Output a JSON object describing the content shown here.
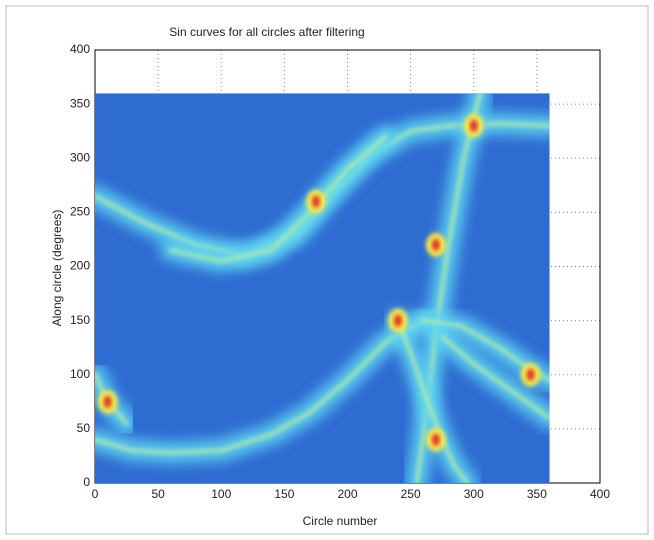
{
  "chart_data": {
    "type": "heatmap",
    "title": "Sin curves for all circles after filtering",
    "xlabel": "Circle number",
    "ylabel": "Along circle (degrees)",
    "xlim": [
      0,
      400
    ],
    "ylim": [
      0,
      400
    ],
    "xticks": [
      0,
      50,
      100,
      150,
      200,
      250,
      300,
      350,
      400
    ],
    "yticks": [
      0,
      50,
      100,
      150,
      200,
      250,
      300,
      350,
      400
    ],
    "grid": true,
    "image_extent": {
      "x": [
        0,
        360
      ],
      "y": [
        0,
        360
      ]
    },
    "colors": {
      "background": "#2f6cd2",
      "curve": "#5fd6f2",
      "core": "#b8f0a0",
      "peak": "#f2e64a",
      "peak_center": "#e2302a"
    },
    "curves": [
      {
        "x": [
          0,
          30,
          60,
          100,
          140,
          170,
          200,
          230,
          260
        ],
        "y": [
          40,
          30,
          28,
          30,
          45,
          65,
          95,
          130,
          150
        ]
      },
      {
        "x": [
          0,
          10,
          25
        ],
        "y": [
          100,
          75,
          55
        ]
      },
      {
        "x": [
          0,
          40,
          80,
          120,
          160,
          190,
          220,
          250,
          280,
          320,
          360
        ],
        "y": [
          265,
          240,
          220,
          210,
          230,
          270,
          305,
          325,
          330,
          332,
          330
        ]
      },
      {
        "x": [
          60,
          100,
          140,
          170,
          200,
          230
        ],
        "y": [
          215,
          205,
          215,
          250,
          290,
          320
        ]
      },
      {
        "x": [
          255,
          262,
          270,
          280,
          292,
          305
        ],
        "y": [
          0,
          60,
          140,
          220,
          300,
          360
        ]
      },
      {
        "x": [
          240,
          250,
          262,
          275,
          285,
          295
        ],
        "y": [
          150,
          120,
          80,
          40,
          15,
          0
        ]
      },
      {
        "x": [
          260,
          290,
          320,
          345,
          360
        ],
        "y": [
          150,
          145,
          125,
          105,
          95
        ]
      },
      {
        "x": [
          275,
          300,
          330,
          360
        ],
        "y": [
          135,
          110,
          85,
          60
        ]
      }
    ],
    "peaks": {
      "x": [
        10,
        175,
        240,
        270,
        270,
        300,
        345
      ],
      "y": [
        75,
        260,
        150,
        220,
        40,
        330,
        100
      ]
    }
  }
}
